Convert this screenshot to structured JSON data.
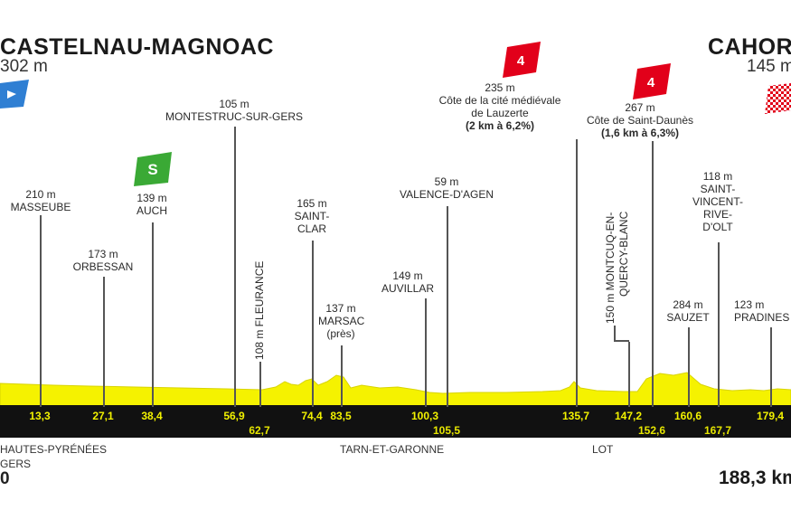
{
  "start": {
    "name": "CASTELNAU-MAGNOAC",
    "altitude": "302 m"
  },
  "finish": {
    "name": "CAHORS",
    "altitude": "145 m"
  },
  "total_distance": "188,3 km",
  "start_km": "0",
  "regions": {
    "hautes_pyrenees": "HAUTES-PYRÉNÉES",
    "gers": "GERS",
    "tarn_et_garonne": "TARN-ET-GARONNE",
    "lot": "LOT"
  },
  "points": {
    "masseube": {
      "alt": "210 m",
      "name": "MASSEUBE",
      "km": "13,3"
    },
    "orbessan": {
      "alt": "173 m",
      "name": "ORBESSAN",
      "km": "27,1"
    },
    "auch": {
      "alt": "139 m",
      "name": "AUCH",
      "km": "38,4",
      "badge": "S"
    },
    "montestruc": {
      "alt": "105 m",
      "name": "MONTESTRUC-SUR-GERS",
      "km": "56,9"
    },
    "fleurance": {
      "label": "108 m FLEURANCE",
      "km": "62,7"
    },
    "saint_clar": {
      "alt": "165 m",
      "name1": "SAINT-",
      "name2": "CLAR",
      "km": "74,4"
    },
    "marsac": {
      "alt": "137 m",
      "name": "MARSAC",
      "note": "(près)",
      "km": "83,5"
    },
    "auvillar": {
      "alt": "149 m",
      "name": "AUVILLAR",
      "km": "100,3"
    },
    "valence": {
      "alt": "59 m",
      "name": "VALENCE-D'AGEN",
      "km": "105,5"
    },
    "lauzerte": {
      "alt": "235 m",
      "line1": "Côte de la cité médiévale",
      "line2": "de Lauzerte",
      "detail": "(2 km à 6,2%)",
      "km": "135,7",
      "badge": "4"
    },
    "montcuq": {
      "label1": "150 m MONTCUQ-EN-",
      "label2": "QUERCY-BLANC",
      "km": "147,2"
    },
    "saint_daunes": {
      "alt": "267 m",
      "name": "Côte de Saint-Daunès",
      "detail": "(1,6 km à 6,3%)",
      "km": "152,6",
      "badge": "4"
    },
    "sauzet": {
      "alt": "284 m",
      "name": "SAUZET",
      "km": "160,6"
    },
    "saint_vincent": {
      "alt": "118 m",
      "l1": "SAINT-",
      "l2": "VINCENT-",
      "l3": "RIVE-",
      "l4": "D'OLT",
      "km": "167,7"
    },
    "pradines": {
      "alt": "123 m",
      "name": "PRADINES",
      "km": "179,4"
    }
  },
  "colors": {
    "profile": "#f5f200",
    "profile_edge": "#d8d400",
    "band": "#111111",
    "sprint": "#3aa935",
    "climb": "#e2001a",
    "start_flag": "#2f7fd3"
  }
}
